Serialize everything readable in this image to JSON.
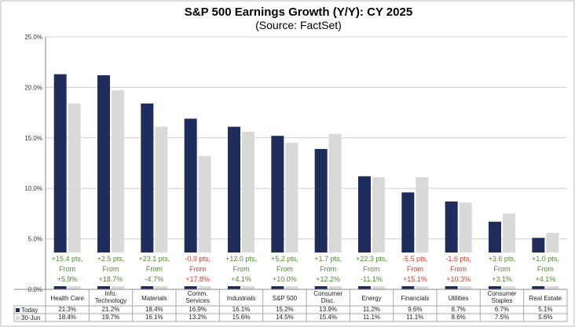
{
  "chart_data": {
    "type": "bar",
    "title": "S&P 500 Earnings Growth (Y/Y): CY 2025",
    "subtitle": "(Source: FactSet)",
    "ylim": [
      0,
      25
    ],
    "yticks": [
      "0.0%",
      "5.0%",
      "10.0%",
      "15.0%",
      "20.0%",
      "25.0%"
    ],
    "ytick_values": [
      0,
      5,
      10,
      15,
      20,
      25
    ],
    "grid": true,
    "categories": [
      [
        "Health Care"
      ],
      [
        "Info.",
        "Technology"
      ],
      [
        "Materials"
      ],
      [
        "Comm.",
        "Services"
      ],
      [
        "Industrials"
      ],
      [
        "S&P 500"
      ],
      [
        "Consumer",
        "Disc."
      ],
      [
        "Energy"
      ],
      [
        "Financials"
      ],
      [
        "Utilities"
      ],
      [
        "Consumer",
        "Staples"
      ],
      [
        "Real Estate"
      ]
    ],
    "series": [
      {
        "name": "Today",
        "color": "#1f2d5c",
        "values": [
          21.3,
          21.2,
          18.4,
          16.9,
          16.1,
          15.2,
          13.9,
          11.2,
          9.6,
          8.7,
          6.7,
          5.1
        ],
        "labels": [
          "21.3%",
          "21.2%",
          "18.4%",
          "16.9%",
          "16.1%",
          "15.2%",
          "13.9%",
          "11.2%",
          "9.6%",
          "8.7%",
          "6.7%",
          "5.1%"
        ]
      },
      {
        "name": "30-Jun",
        "color": "#d9d9d9",
        "values": [
          18.4,
          19.7,
          16.1,
          13.2,
          15.6,
          14.5,
          15.4,
          11.1,
          11.1,
          8.6,
          7.5,
          5.6
        ],
        "labels": [
          "18.4%",
          "19.7%",
          "16.1%",
          "13.2%",
          "15.6%",
          "14.5%",
          "15.4%",
          "11.1%",
          "11.1%",
          "8.6%",
          "7.5%",
          "5.6%"
        ]
      }
    ],
    "annotations": [
      [
        "+15.4 pts,",
        "From",
        "+5.9%"
      ],
      [
        "+2.5 pts,",
        "From",
        "+18.7%"
      ],
      [
        "+23.1 pts,",
        "From",
        "-4.7%"
      ],
      [
        "-0.9 pts,",
        "From",
        "+17.8%"
      ],
      [
        "+12.0 pts,",
        "From",
        "+4.1%"
      ],
      [
        "+5.2 pts,",
        "From",
        "+10.0%"
      ],
      [
        "+1.7 pts,",
        "From",
        "+12.2%"
      ],
      [
        "+22.3 pts,",
        "From",
        "-11.1%"
      ],
      [
        "-5.5 pts,",
        "From",
        "+15.1%"
      ],
      [
        "-1.6 pts,",
        "From",
        "+10.3%"
      ],
      [
        "+3.6 pts,",
        "From",
        "+3.1%"
      ],
      [
        "+1.0 pts,",
        "From",
        "+4.1%"
      ]
    ],
    "annotation_colors": [
      "#4e8a2e",
      "#4e8a2e",
      "#4e8a2e",
      "#e0392b",
      "#4e8a2e",
      "#4e8a2e",
      "#4e8a2e",
      "#4e8a2e",
      "#e0392b",
      "#e0392b",
      "#4e8a2e",
      "#4e8a2e"
    ]
  }
}
